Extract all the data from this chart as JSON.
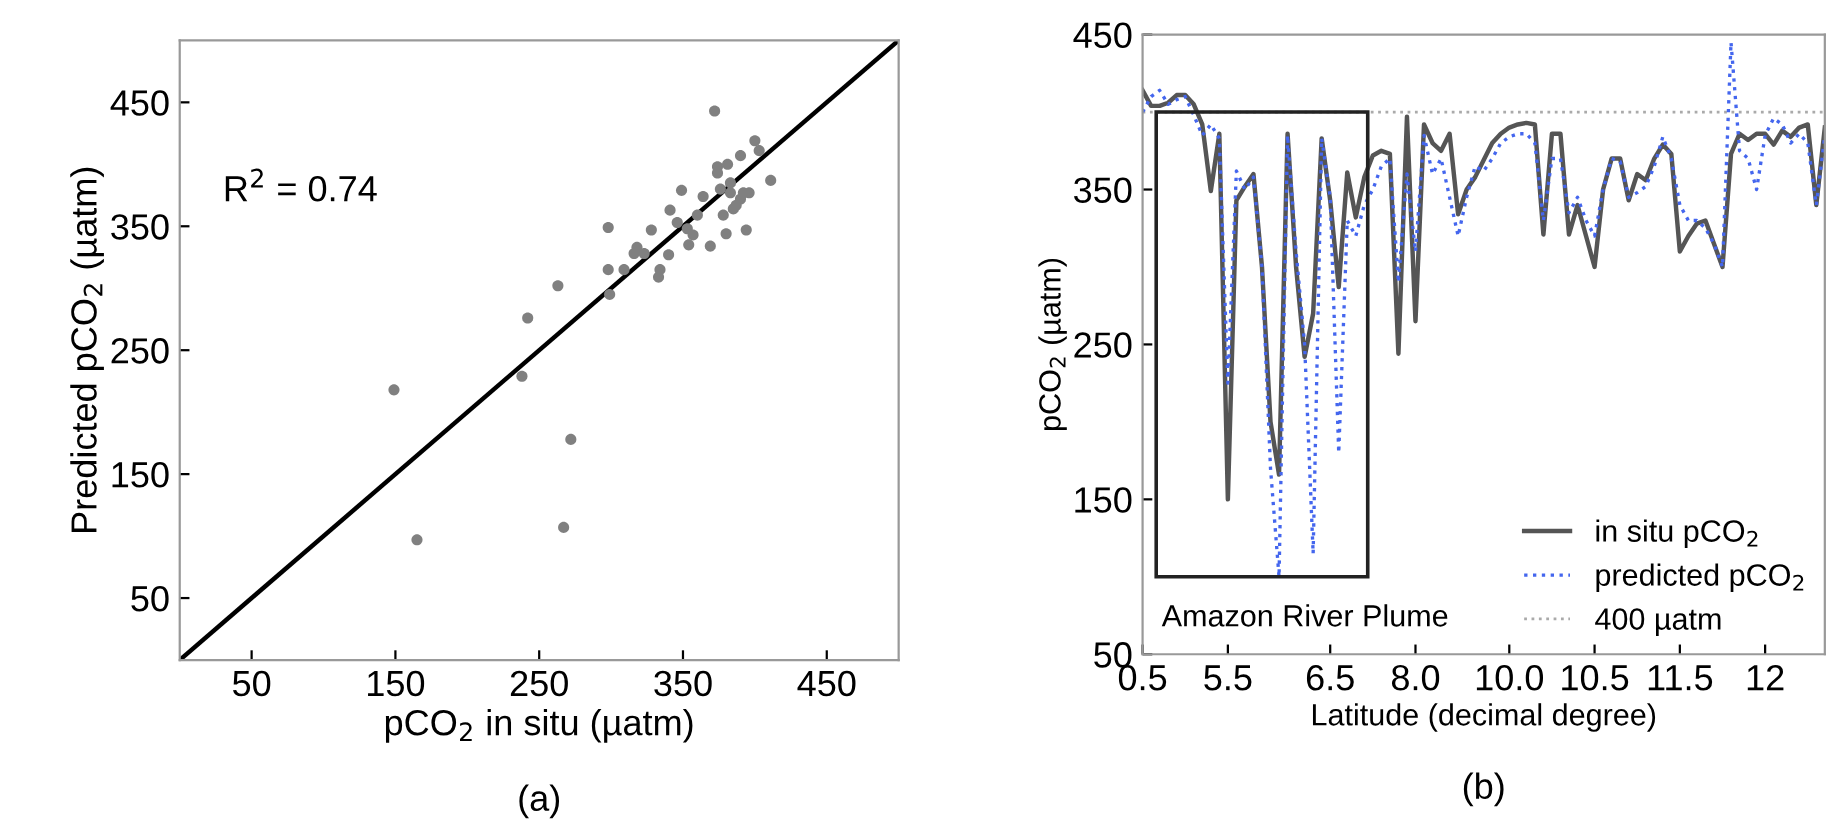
{
  "chart_data": [
    {
      "type": "scatter",
      "title": "(a)",
      "xlabel": "pCO$_{2}$ in situ (µatm)",
      "ylabel": "Predicted pCO$_{2}$ (µatm)",
      "xlim": [
        0,
        500
      ],
      "ylim": [
        0,
        500
      ],
      "xticks": [
        50,
        150,
        250,
        350,
        450
      ],
      "yticks": [
        50,
        150,
        250,
        350,
        450
      ],
      "grid": false,
      "legend": false,
      "marker": "circle",
      "annotations": [
        "R$^{2}$ = 0.74"
      ],
      "series": [
        {
          "type": "scatter",
          "color": "#808080",
          "x": [
            372,
            400,
            403,
            390,
            411,
            374,
            381,
            349,
            341,
            298,
            328,
            394,
            380,
            298,
            309,
            323,
            340,
            333,
            354,
            369,
            299,
            263,
            242,
            238,
            149,
            272,
            267,
            165,
            364,
            376,
            383,
            390,
            385,
            392,
            360,
            353,
            357,
            346,
            378,
            318,
            316,
            383,
            374,
            334,
            387,
            396
          ],
          "values": [
            443,
            419,
            411,
            407,
            387,
            398,
            400,
            379,
            363,
            349,
            347,
            347,
            344,
            315,
            315,
            328,
            327,
            309,
            335,
            334,
            295,
            302,
            276,
            229,
            218,
            178,
            107,
            97,
            374,
            380,
            377,
            372,
            364,
            377,
            359,
            348,
            343,
            353,
            359,
            333,
            328,
            385,
            393,
            315,
            367,
            377
          ]
        },
        {
          "type": "line",
          "color": "#000000",
          "line_style": "solid",
          "marker": "none",
          "x": [
            0,
            500
          ],
          "values": [
            0,
            500
          ]
        }
      ]
    },
    {
      "type": "line",
      "title": "(b)",
      "xlabel": "Latitude (decimal degree)",
      "ylabel": "pCO$_{2}$ (µatm)",
      "ylim": [
        50,
        450
      ],
      "yticks": [
        50,
        150,
        250,
        350,
        450
      ],
      "grid": false,
      "legend": "bottom right",
      "marker": "none",
      "annotations": [
        "Amazon River Plume"
      ],
      "categories": [
        "0.5",
        null,
        null,
        null,
        null,
        null,
        null,
        null,
        null,
        null,
        "5.5",
        null,
        null,
        null,
        null,
        null,
        null,
        null,
        null,
        null,
        null,
        null,
        "6.5",
        null,
        null,
        null,
        null,
        null,
        null,
        null,
        null,
        null,
        "8.0",
        null,
        null,
        null,
        null,
        null,
        null,
        null,
        null,
        null,
        null,
        "10.0",
        null,
        null,
        null,
        null,
        null,
        null,
        null,
        null,
        null,
        "10.5",
        null,
        null,
        null,
        null,
        null,
        null,
        null,
        null,
        null,
        "11.5",
        null,
        null,
        null,
        null,
        null,
        null,
        null,
        null,
        null,
        "12",
        null,
        null,
        null,
        null,
        null,
        null,
        null
      ],
      "ref_lines": [
        {
          "axis": "y",
          "value": 400,
          "label": "400 µatm",
          "color": "#aaaaaa",
          "line_style": "dotted"
        }
      ],
      "series": [
        {
          "name": "in situ pCO$_{2}$",
          "color": "#555555",
          "line_style": "solid",
          "values": [
            414,
            404,
            404,
            406,
            411,
            411,
            405,
            392,
            349,
            386,
            150,
            343,
            352,
            360,
            300,
            200,
            166,
            386,
            300,
            242,
            270,
            383,
            343,
            287,
            361,
            332,
            358,
            372,
            375,
            373,
            244,
            397,
            265,
            392,
            380,
            375,
            386,
            334,
            350,
            358,
            369,
            380,
            386,
            390,
            392,
            393,
            392,
            321,
            386,
            386,
            321,
            340,
            320,
            300,
            350,
            370,
            370,
            343,
            360,
            356,
            370,
            379,
            373,
            310,
            320,
            328,
            330,
            315,
            300,
            373,
            386,
            382,
            386,
            386,
            379,
            388,
            384,
            390,
            392,
            340,
            390
          ]
        },
        {
          "name": "predicted pCO$_{2}$",
          "color": "#4466ee",
          "line_style": "dotted",
          "values": [
            400,
            410,
            414,
            405,
            408,
            410,
            398,
            385,
            392,
            383,
            225,
            362,
            350,
            358,
            300,
            170,
            100,
            385,
            310,
            250,
            115,
            383,
            345,
            180,
            330,
            320,
            340,
            350,
            365,
            370,
            290,
            360,
            310,
            385,
            360,
            370,
            345,
            320,
            345,
            365,
            362,
            370,
            380,
            384,
            386,
            386,
            380,
            330,
            370,
            370,
            335,
            345,
            330,
            320,
            350,
            370,
            368,
            345,
            348,
            352,
            365,
            384,
            370,
            340,
            330,
            330,
            325,
            315,
            300,
            445,
            375,
            370,
            350,
            385,
            396,
            392,
            380,
            386,
            380,
            340,
            385
          ]
        }
      ]
    }
  ]
}
